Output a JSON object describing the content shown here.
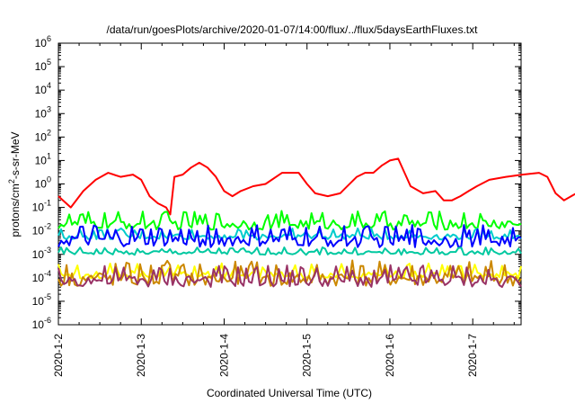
{
  "chart_data": {
    "type": "line",
    "title": "/data/run/goesPlots/archive/2020-01-07/14:00/flux/../flux/5daysEarthFluxes.txt",
    "xlabel": "Coordinated Universal Time (UTC)",
    "ylabel_main": "protons/cm",
    "ylabel_sup": "2",
    "ylabel_rest": "-s-sr-MeV",
    "yscale": "log",
    "ylim": [
      1e-06,
      1000000.0
    ],
    "y_ticks": [
      {
        "base": "10",
        "exp": "-6"
      },
      {
        "base": "10",
        "exp": "-5"
      },
      {
        "base": "10",
        "exp": "-4"
      },
      {
        "base": "10",
        "exp": "-3"
      },
      {
        "base": "10",
        "exp": "-2"
      },
      {
        "base": "10",
        "exp": "-1"
      },
      {
        "base": "10",
        "exp": "0"
      },
      {
        "base": "10",
        "exp": "1"
      },
      {
        "base": "10",
        "exp": "2"
      },
      {
        "base": "10",
        "exp": "3"
      },
      {
        "base": "10",
        "exp": "4"
      },
      {
        "base": "10",
        "exp": "5"
      },
      {
        "base": "10",
        "exp": "6"
      }
    ],
    "xlim": [
      "2020-01-02",
      "2020-01-07T14:00"
    ],
    "x_ticks": [
      "2020-1-2",
      "2020-1-3",
      "2020-1-4",
      "2020-1-5",
      "2020-1-6",
      "2020-1-7"
    ],
    "grid": false,
    "legend": "none",
    "series": [
      {
        "color": "#ff0000",
        "x_days": [
          0,
          0.15,
          0.3,
          0.45,
          0.6,
          0.75,
          0.9,
          1.0,
          1.1,
          1.2,
          1.3,
          1.35,
          1.4,
          1.5,
          1.6,
          1.7,
          1.8,
          1.9,
          2.0,
          2.1,
          2.2,
          2.35,
          2.5,
          2.7,
          2.9,
          3.0,
          3.1,
          3.25,
          3.4,
          3.6,
          3.7,
          3.8,
          3.9,
          4.0,
          4.1,
          4.25,
          4.4,
          4.55,
          4.65,
          4.75,
          4.85,
          4.95,
          5.05,
          5.2,
          5.4,
          5.6,
          5.8,
          5.9,
          6.0,
          6.1,
          6.25,
          6.4,
          6.58
        ],
        "y": [
          0.3,
          0.1,
          0.5,
          1.5,
          3,
          2,
          2.5,
          1.5,
          0.3,
          0.15,
          0.1,
          0.05,
          2,
          2.5,
          5,
          8,
          5,
          2,
          0.5,
          0.3,
          0.5,
          0.8,
          1,
          3,
          3,
          1,
          0.4,
          0.3,
          0.4,
          2,
          3,
          3,
          6,
          10,
          12,
          0.8,
          0.4,
          0.5,
          0.2,
          0.2,
          0.3,
          0.5,
          0.8,
          1.5,
          2,
          2.5,
          3,
          2,
          0.4,
          0.2,
          0.4,
          0.8,
          3
        ]
      },
      {
        "color": "#00ff00",
        "base": 0.02,
        "amp": 0.5
      },
      {
        "color": "#00cccc",
        "base": 0.006,
        "amp": 0.3
      },
      {
        "color": "#0000ff",
        "base": 0.004,
        "amp": 0.6
      },
      {
        "color": "#00c8a0",
        "base": 0.0012,
        "amp": 0.2
      },
      {
        "color": "#ffff00",
        "base": 0.00015,
        "amp": 0.4
      },
      {
        "color": "#cc8800",
        "base": 0.0001,
        "amp": 0.7
      },
      {
        "color": "#993366",
        "base": 8e-05,
        "amp": 0.6
      }
    ]
  }
}
